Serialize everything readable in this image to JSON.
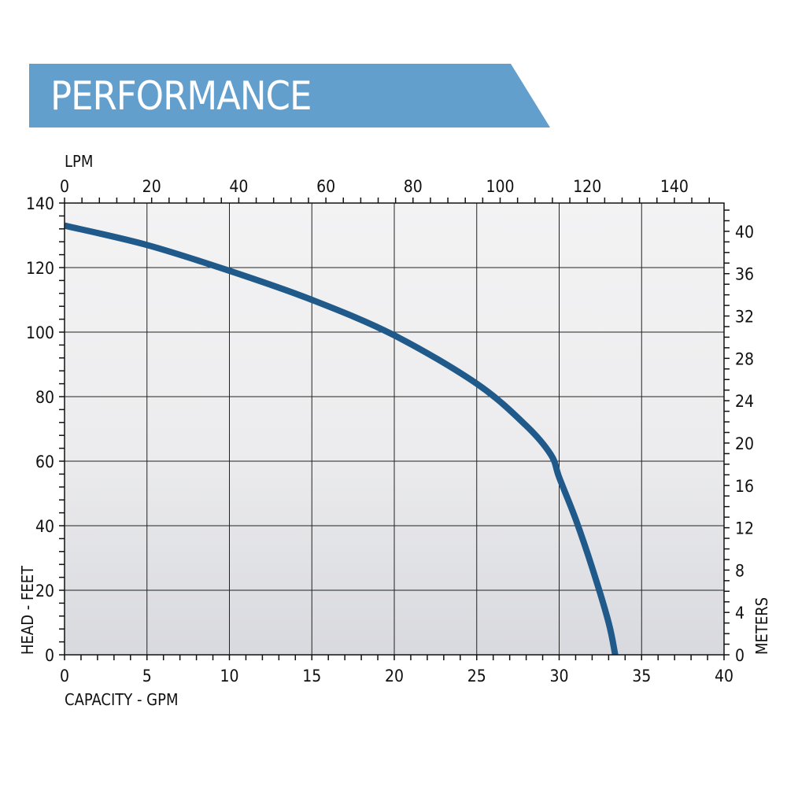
{
  "header": {
    "title": "PERFORMANCE",
    "color": "#629fcd"
  },
  "chart_data": {
    "type": "line",
    "xlabel": "CAPACITY - GPM",
    "ylabel": "HEAD - FEET",
    "x2label": "LPM",
    "y2label": "METERS",
    "xlim": [
      0,
      40
    ],
    "ylim": [
      0,
      140
    ],
    "x2lim": [
      0,
      151.4
    ],
    "y2lim": [
      0,
      42.67
    ],
    "xticks": [
      0,
      5,
      10,
      15,
      20,
      25,
      30,
      35,
      40
    ],
    "yticks": [
      0,
      20,
      40,
      60,
      80,
      100,
      120,
      140
    ],
    "x2ticks": [
      0,
      20,
      40,
      60,
      80,
      100,
      120,
      140
    ],
    "y2ticks": [
      0,
      4,
      8,
      12,
      16,
      20,
      24,
      28,
      32,
      36,
      40
    ],
    "grid": true,
    "series": [
      {
        "color": "#1f5a8a",
        "x": [
          0,
          5,
          10,
          15,
          20,
          25,
          28,
          29.5,
          30,
          31,
          32,
          33,
          33.4
        ],
        "y": [
          133,
          127,
          119,
          110,
          99,
          84,
          71,
          62,
          55,
          42,
          27,
          10,
          0
        ]
      }
    ]
  }
}
